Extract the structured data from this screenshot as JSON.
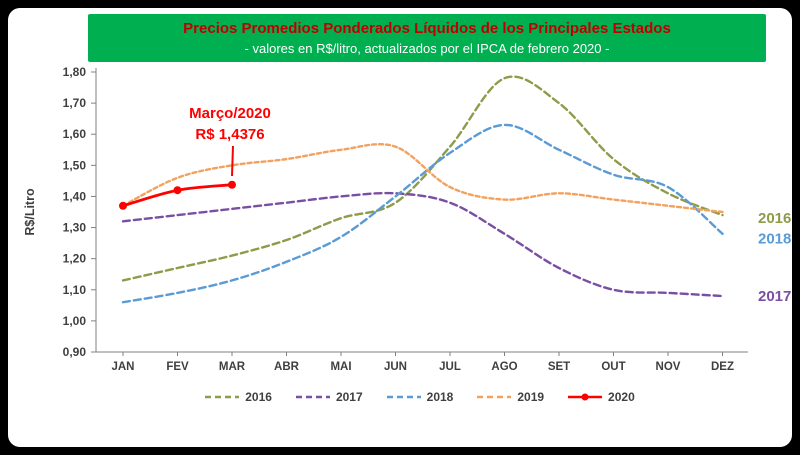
{
  "header": {
    "title": "Precios Promedios Ponderados Líquidos de los Principales Estados",
    "subtitle": "- valores en R$/litro, actualizados por el IPCA de febrero 2020 -",
    "banner_color": "#00B050",
    "title_color": "#C00000",
    "subtitle_color": "#FFFFFF"
  },
  "chart_data": {
    "type": "line",
    "title": "Precios Promedios Ponderados Líquidos de los Principales Estados",
    "subtitle": "- valores en R$/litro, actualizados por el IPCA de febrero 2020 -",
    "ylabel": "R$/Litro",
    "ylim": [
      0.9,
      1.8
    ],
    "y_tick_labels": [
      "1,80",
      "1,70",
      "1,60",
      "1,50",
      "1,40",
      "1,30",
      "1,20",
      "1,10",
      "1,00",
      "0,90"
    ],
    "categories": [
      "JAN",
      "FEV",
      "MAR",
      "ABR",
      "MAI",
      "JUN",
      "JUL",
      "AGO",
      "SET",
      "OUT",
      "NOV",
      "DEZ"
    ],
    "grid": false,
    "series": [
      {
        "name": "2016",
        "color": "#8E9B49",
        "dash": "7 4",
        "marker": false,
        "values": [
          1.13,
          1.17,
          1.21,
          1.26,
          1.33,
          1.38,
          1.56,
          1.78,
          1.7,
          1.52,
          1.41,
          1.34
        ]
      },
      {
        "name": "2017",
        "color": "#7A4FA3",
        "dash": "7 4",
        "marker": false,
        "values": [
          1.32,
          1.34,
          1.36,
          1.38,
          1.4,
          1.41,
          1.38,
          1.28,
          1.17,
          1.1,
          1.09,
          1.08
        ]
      },
      {
        "name": "2018",
        "color": "#5B9BD5",
        "dash": "7 4",
        "marker": false,
        "values": [
          1.06,
          1.09,
          1.13,
          1.19,
          1.27,
          1.4,
          1.54,
          1.63,
          1.55,
          1.47,
          1.43,
          1.28
        ]
      },
      {
        "name": "2019",
        "color": "#F2A25E",
        "dash": "4 3",
        "marker": false,
        "values": [
          1.37,
          1.46,
          1.5,
          1.52,
          1.55,
          1.56,
          1.43,
          1.39,
          1.41,
          1.39,
          1.37,
          1.35
        ]
      },
      {
        "name": "2020",
        "color": "#FF0000",
        "dash": null,
        "marker": true,
        "values": [
          1.37,
          1.42,
          1.4376
        ]
      }
    ],
    "annotation": {
      "line1": "Março/2020",
      "line2": "R$ 1,4376",
      "color": "#FF0000"
    },
    "right_labels": [
      {
        "text": "2016",
        "color": "#8E9B49",
        "value": 1.33
      },
      {
        "text": "2018",
        "color": "#5B9BD5",
        "value": 1.265
      },
      {
        "text": "2017",
        "color": "#7A4FA3",
        "value": 1.08
      }
    ],
    "legend": {
      "position": "bottom",
      "entries": [
        "2016",
        "2017",
        "2018",
        "2019",
        "2020"
      ]
    }
  }
}
